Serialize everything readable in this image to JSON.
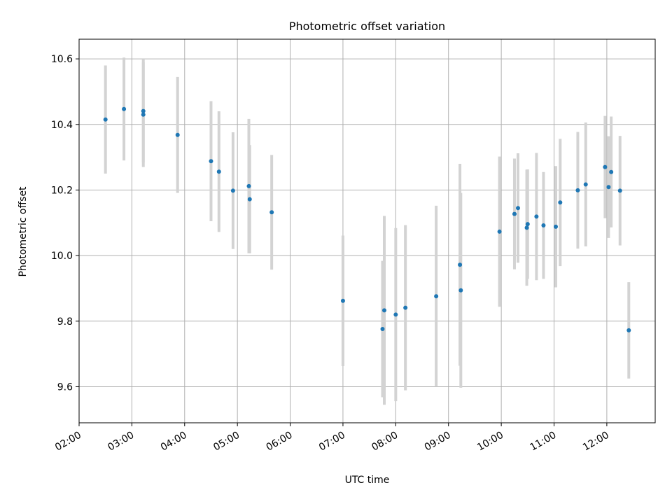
{
  "chart_data": {
    "type": "scatter",
    "title": "Photometric offset variation",
    "xlabel": "UTC time",
    "ylabel": "Photometric offset",
    "x_range": [
      "02:00",
      "12:55"
    ],
    "ylim": [
      9.49,
      10.66
    ],
    "grid": true,
    "x_ticks": [
      "02:00",
      "03:00",
      "04:00",
      "05:00",
      "06:00",
      "07:00",
      "08:00",
      "09:00",
      "10:00",
      "11:00",
      "12:00"
    ],
    "y_ticks": [
      "9.6",
      "9.8",
      "10.0",
      "10.2",
      "10.4",
      "10.6"
    ],
    "colors": {
      "point": "#1f77b4",
      "errorbar": "#d3d3d3",
      "grid": "#b0b0b0"
    },
    "points": [
      {
        "x": "02:30",
        "y": 10.415,
        "err": 0.165
      },
      {
        "x": "02:51",
        "y": 10.447,
        "err": 0.157
      },
      {
        "x": "03:13",
        "y": 10.441,
        "err": 0.157
      },
      {
        "x": "03:13",
        "y": 10.43,
        "err": 0.16
      },
      {
        "x": "03:52",
        "y": 10.368,
        "err": 0.177
      },
      {
        "x": "04:30",
        "y": 10.288,
        "err": 0.183
      },
      {
        "x": "04:39",
        "y": 10.256,
        "err": 0.184
      },
      {
        "x": "04:55",
        "y": 10.198,
        "err": 0.178
      },
      {
        "x": "05:13",
        "y": 10.212,
        "err": 0.205
      },
      {
        "x": "05:14",
        "y": 10.172,
        "err": 0.165
      },
      {
        "x": "05:39",
        "y": 10.132,
        "err": 0.175
      },
      {
        "x": "07:00",
        "y": 9.862,
        "err": 0.199
      },
      {
        "x": "07:45",
        "y": 9.776,
        "err": 0.208
      },
      {
        "x": "07:47",
        "y": 9.833,
        "err": 0.288
      },
      {
        "x": "08:00",
        "y": 9.82,
        "err": 0.264
      },
      {
        "x": "08:11",
        "y": 9.841,
        "err": 0.252
      },
      {
        "x": "08:46",
        "y": 9.876,
        "err": 0.276
      },
      {
        "x": "09:13",
        "y": 9.972,
        "err": 0.308
      },
      {
        "x": "09:14",
        "y": 9.894,
        "err": 0.297
      },
      {
        "x": "09:58",
        "y": 10.073,
        "err": 0.229
      },
      {
        "x": "10:15",
        "y": 10.127,
        "err": 0.169
      },
      {
        "x": "10:19",
        "y": 10.145,
        "err": 0.167
      },
      {
        "x": "10:29",
        "y": 10.085,
        "err": 0.177
      },
      {
        "x": "10:30",
        "y": 10.096,
        "err": 0.167
      },
      {
        "x": "10:40",
        "y": 10.119,
        "err": 0.194
      },
      {
        "x": "10:48",
        "y": 10.092,
        "err": 0.163
      },
      {
        "x": "11:02",
        "y": 10.088,
        "err": 0.185
      },
      {
        "x": "11:07",
        "y": 10.162,
        "err": 0.194
      },
      {
        "x": "11:27",
        "y": 10.199,
        "err": 0.178
      },
      {
        "x": "11:36",
        "y": 10.217,
        "err": 0.189
      },
      {
        "x": "11:58",
        "y": 10.27,
        "err": 0.156
      },
      {
        "x": "12:02",
        "y": 10.209,
        "err": 0.155
      },
      {
        "x": "12:05",
        "y": 10.255,
        "err": 0.169
      },
      {
        "x": "12:15",
        "y": 10.198,
        "err": 0.167
      },
      {
        "x": "12:25",
        "y": 9.772,
        "err": 0.147
      }
    ]
  }
}
